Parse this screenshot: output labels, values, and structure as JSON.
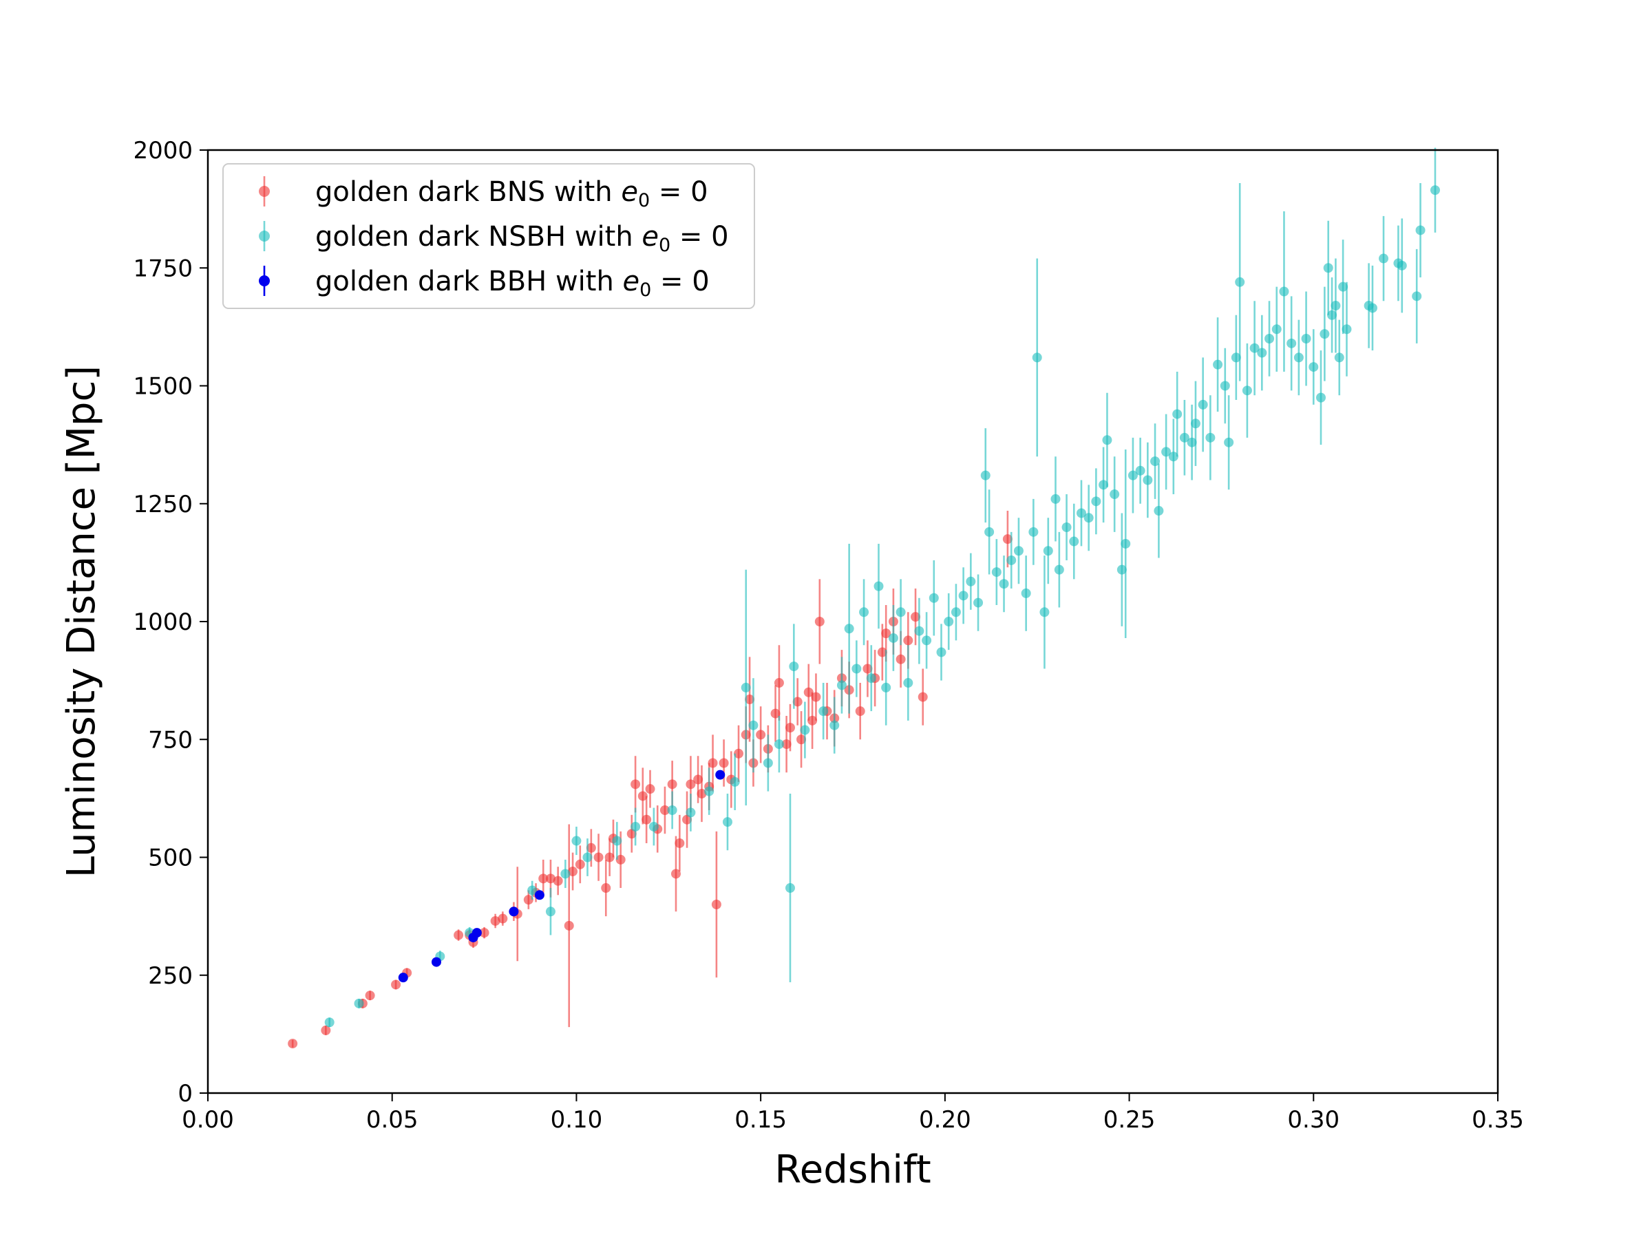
{
  "chart_data": {
    "type": "scatter",
    "title": "",
    "xlabel": "Redshift",
    "ylabel": "Luminosity Distance [Mpc]",
    "xlim": [
      0.0,
      0.35
    ],
    "ylim": [
      0,
      2000
    ],
    "xticks": [
      "0.00",
      "0.05",
      "0.10",
      "0.15",
      "0.20",
      "0.25",
      "0.30",
      "0.35"
    ],
    "yticks": [
      "0",
      "250",
      "500",
      "750",
      "1000",
      "1250",
      "1500",
      "1750",
      "2000"
    ],
    "grid": false,
    "legend_position": "top-left",
    "error_bars": true,
    "series": [
      {
        "name": "golden dark BNS with e0 = 0",
        "legend_prefix": "golden dark BNS with ",
        "legend_var": "e",
        "legend_sub": "0",
        "legend_suffix": " = 0",
        "color": "#ee3333",
        "alpha": 0.6,
        "points": [
          [
            0.023,
            105,
            8
          ],
          [
            0.032,
            133,
            10
          ],
          [
            0.042,
            190,
            10
          ],
          [
            0.044,
            207,
            10
          ],
          [
            0.051,
            230,
            10
          ],
          [
            0.054,
            255,
            10
          ],
          [
            0.068,
            335,
            12
          ],
          [
            0.071,
            335,
            12
          ],
          [
            0.072,
            320,
            12
          ],
          [
            0.075,
            340,
            12
          ],
          [
            0.078,
            365,
            15
          ],
          [
            0.08,
            370,
            15
          ],
          [
            0.083,
            385,
            20
          ],
          [
            0.084,
            380,
            100
          ],
          [
            0.087,
            410,
            20
          ],
          [
            0.089,
            425,
            20
          ],
          [
            0.091,
            455,
            40
          ],
          [
            0.093,
            455,
            40
          ],
          [
            0.095,
            450,
            30
          ],
          [
            0.098,
            355,
            215
          ],
          [
            0.099,
            470,
            40
          ],
          [
            0.101,
            485,
            40
          ],
          [
            0.104,
            520,
            40
          ],
          [
            0.106,
            500,
            50
          ],
          [
            0.108,
            435,
            60
          ],
          [
            0.109,
            500,
            40
          ],
          [
            0.11,
            540,
            40
          ],
          [
            0.112,
            495,
            60
          ],
          [
            0.115,
            550,
            40
          ],
          [
            0.116,
            655,
            60
          ],
          [
            0.118,
            630,
            60
          ],
          [
            0.119,
            580,
            50
          ],
          [
            0.12,
            645,
            40
          ],
          [
            0.122,
            560,
            50
          ],
          [
            0.124,
            600,
            50
          ],
          [
            0.126,
            655,
            50
          ],
          [
            0.127,
            465,
            80
          ],
          [
            0.128,
            530,
            60
          ],
          [
            0.13,
            580,
            60
          ],
          [
            0.131,
            655,
            60
          ],
          [
            0.133,
            665,
            50
          ],
          [
            0.134,
            635,
            60
          ],
          [
            0.136,
            650,
            50
          ],
          [
            0.137,
            700,
            60
          ],
          [
            0.138,
            400,
            155
          ],
          [
            0.14,
            700,
            50
          ],
          [
            0.142,
            665,
            60
          ],
          [
            0.144,
            720,
            60
          ],
          [
            0.146,
            760,
            60
          ],
          [
            0.147,
            835,
            90
          ],
          [
            0.148,
            700,
            50
          ],
          [
            0.15,
            760,
            60
          ],
          [
            0.152,
            730,
            50
          ],
          [
            0.154,
            805,
            60
          ],
          [
            0.155,
            870,
            80
          ],
          [
            0.157,
            740,
            60
          ],
          [
            0.158,
            775,
            50
          ],
          [
            0.16,
            830,
            50
          ],
          [
            0.161,
            750,
            60
          ],
          [
            0.163,
            850,
            60
          ],
          [
            0.164,
            790,
            60
          ],
          [
            0.165,
            840,
            50
          ],
          [
            0.166,
            1000,
            90
          ],
          [
            0.168,
            810,
            60
          ],
          [
            0.17,
            795,
            60
          ],
          [
            0.172,
            880,
            60
          ],
          [
            0.174,
            855,
            60
          ],
          [
            0.177,
            810,
            60
          ],
          [
            0.179,
            900,
            60
          ],
          [
            0.181,
            880,
            60
          ],
          [
            0.183,
            935,
            60
          ],
          [
            0.184,
            975,
            60
          ],
          [
            0.186,
            1000,
            70
          ],
          [
            0.188,
            920,
            60
          ],
          [
            0.19,
            960,
            60
          ],
          [
            0.192,
            1010,
            60
          ],
          [
            0.194,
            840,
            60
          ],
          [
            0.217,
            1175,
            60
          ]
        ]
      },
      {
        "name": "golden dark NSBH with e0 = 0",
        "legend_prefix": "golden dark NSBH with ",
        "legend_var": "e",
        "legend_sub": "0",
        "legend_suffix": " = 0",
        "color": "#1cbdbd",
        "alpha": 0.6,
        "points": [
          [
            0.033,
            150,
            10
          ],
          [
            0.041,
            190,
            10
          ],
          [
            0.063,
            290,
            12
          ],
          [
            0.071,
            340,
            12
          ],
          [
            0.088,
            430,
            20
          ],
          [
            0.093,
            385,
            50
          ],
          [
            0.097,
            465,
            30
          ],
          [
            0.1,
            535,
            30
          ],
          [
            0.103,
            500,
            40
          ],
          [
            0.111,
            535,
            40
          ],
          [
            0.116,
            565,
            40
          ],
          [
            0.121,
            565,
            40
          ],
          [
            0.126,
            600,
            40
          ],
          [
            0.131,
            595,
            40
          ],
          [
            0.136,
            640,
            50
          ],
          [
            0.141,
            575,
            60
          ],
          [
            0.143,
            660,
            60
          ],
          [
            0.146,
            860,
            250
          ],
          [
            0.148,
            780,
            100
          ],
          [
            0.152,
            700,
            60
          ],
          [
            0.155,
            740,
            60
          ],
          [
            0.158,
            435,
            200
          ],
          [
            0.159,
            905,
            90
          ],
          [
            0.162,
            770,
            60
          ],
          [
            0.167,
            810,
            60
          ],
          [
            0.17,
            780,
            60
          ],
          [
            0.172,
            865,
            60
          ],
          [
            0.174,
            985,
            180
          ],
          [
            0.176,
            900,
            60
          ],
          [
            0.178,
            1020,
            70
          ],
          [
            0.18,
            880,
            70
          ],
          [
            0.182,
            1075,
            90
          ],
          [
            0.184,
            860,
            80
          ],
          [
            0.186,
            965,
            70
          ],
          [
            0.188,
            1020,
            70
          ],
          [
            0.19,
            870,
            80
          ],
          [
            0.193,
            980,
            70
          ],
          [
            0.195,
            960,
            60
          ],
          [
            0.197,
            1050,
            80
          ],
          [
            0.199,
            935,
            60
          ],
          [
            0.201,
            1000,
            60
          ],
          [
            0.203,
            1020,
            60
          ],
          [
            0.205,
            1055,
            60
          ],
          [
            0.207,
            1085,
            60
          ],
          [
            0.209,
            1040,
            60
          ],
          [
            0.211,
            1310,
            100
          ],
          [
            0.212,
            1190,
            90
          ],
          [
            0.214,
            1105,
            70
          ],
          [
            0.216,
            1080,
            60
          ],
          [
            0.218,
            1130,
            60
          ],
          [
            0.22,
            1150,
            70
          ],
          [
            0.222,
            1060,
            80
          ],
          [
            0.224,
            1190,
            70
          ],
          [
            0.225,
            1560,
            210
          ],
          [
            0.227,
            1020,
            120
          ],
          [
            0.228,
            1150,
            70
          ],
          [
            0.23,
            1260,
            90
          ],
          [
            0.231,
            1110,
            80
          ],
          [
            0.233,
            1200,
            70
          ],
          [
            0.235,
            1170,
            80
          ],
          [
            0.237,
            1230,
            70
          ],
          [
            0.239,
            1220,
            70
          ],
          [
            0.241,
            1255,
            70
          ],
          [
            0.243,
            1290,
            80
          ],
          [
            0.244,
            1385,
            100
          ],
          [
            0.246,
            1270,
            80
          ],
          [
            0.248,
            1110,
            120
          ],
          [
            0.249,
            1165,
            200
          ],
          [
            0.251,
            1310,
            80
          ],
          [
            0.253,
            1320,
            70
          ],
          [
            0.255,
            1300,
            80
          ],
          [
            0.257,
            1340,
            80
          ],
          [
            0.258,
            1235,
            100
          ],
          [
            0.26,
            1360,
            80
          ],
          [
            0.262,
            1350,
            80
          ],
          [
            0.263,
            1440,
            90
          ],
          [
            0.265,
            1390,
            80
          ],
          [
            0.267,
            1380,
            80
          ],
          [
            0.268,
            1420,
            90
          ],
          [
            0.27,
            1460,
            100
          ],
          [
            0.272,
            1390,
            90
          ],
          [
            0.274,
            1545,
            100
          ],
          [
            0.276,
            1500,
            80
          ],
          [
            0.277,
            1380,
            100
          ],
          [
            0.279,
            1560,
            90
          ],
          [
            0.28,
            1720,
            210
          ],
          [
            0.282,
            1490,
            100
          ],
          [
            0.284,
            1580,
            100
          ],
          [
            0.286,
            1570,
            80
          ],
          [
            0.288,
            1600,
            80
          ],
          [
            0.29,
            1620,
            90
          ],
          [
            0.292,
            1700,
            170
          ],
          [
            0.294,
            1590,
            100
          ],
          [
            0.296,
            1560,
            80
          ],
          [
            0.298,
            1600,
            100
          ],
          [
            0.3,
            1540,
            80
          ],
          [
            0.302,
            1475,
            100
          ],
          [
            0.303,
            1610,
            100
          ],
          [
            0.304,
            1750,
            100
          ],
          [
            0.305,
            1650,
            80
          ],
          [
            0.306,
            1670,
            100
          ],
          [
            0.307,
            1560,
            80
          ],
          [
            0.308,
            1710,
            100
          ],
          [
            0.309,
            1620,
            100
          ],
          [
            0.315,
            1670,
            90
          ],
          [
            0.316,
            1665,
            90
          ],
          [
            0.319,
            1770,
            90
          ],
          [
            0.323,
            1760,
            80
          ],
          [
            0.324,
            1755,
            100
          ],
          [
            0.328,
            1690,
            100
          ],
          [
            0.329,
            1830,
            100
          ],
          [
            0.333,
            1915,
            90
          ]
        ]
      },
      {
        "name": "golden dark BBH with e0 = 0",
        "legend_prefix": "golden dark BBH with ",
        "legend_var": "e",
        "legend_sub": "0",
        "legend_suffix": " = 0",
        "color": "#0000ee",
        "alpha": 1.0,
        "points": [
          [
            0.053,
            245,
            5
          ],
          [
            0.062,
            278,
            5
          ],
          [
            0.072,
            330,
            5
          ],
          [
            0.073,
            340,
            5
          ],
          [
            0.083,
            385,
            5
          ],
          [
            0.09,
            420,
            5
          ],
          [
            0.139,
            675,
            8
          ]
        ]
      }
    ]
  }
}
